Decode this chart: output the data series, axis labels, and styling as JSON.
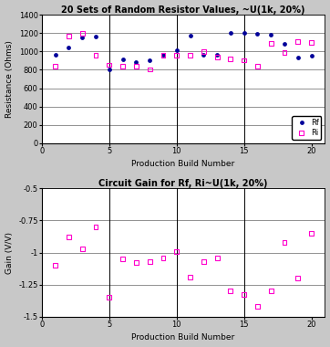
{
  "title1": "20 Sets of Random Resistor Values, ~U(1k, 20%)",
  "title2": "Circuit Gain for Rf, Ri~U(1k, 20%)",
  "xlabel": "Production Build Number",
  "ylabel1": "Resistance (Ohms)",
  "ylabel2": "Gain (V/V)",
  "x": [
    1,
    2,
    3,
    4,
    5,
    6,
    7,
    8,
    9,
    10,
    11,
    12,
    13,
    14,
    15,
    16,
    17,
    18,
    19,
    20
  ],
  "Rf": [
    960,
    1040,
    1155,
    1160,
    805,
    910,
    880,
    900,
    960,
    1015,
    1170,
    960,
    960,
    1200,
    1200,
    1190,
    1185,
    1080,
    930,
    955
  ],
  "Ri": [
    840,
    1170,
    1195,
    960,
    855,
    840,
    840,
    805,
    960,
    960,
    960,
    1000,
    940,
    920,
    905,
    840,
    1090,
    990,
    1110,
    1100
  ],
  "gain": [
    -1.1,
    -0.88,
    -0.97,
    -0.8,
    -1.35,
    -1.05,
    -1.08,
    -1.07,
    -1.04,
    -0.99,
    -1.19,
    -1.07,
    -1.04,
    -1.3,
    -1.33,
    -1.42,
    -1.3,
    -0.92,
    -1.2,
    -0.85
  ],
  "ylim1": [
    0,
    1400
  ],
  "ylim2": [
    -1.5,
    -0.5
  ],
  "yticks1": [
    0,
    200,
    400,
    600,
    800,
    1000,
    1200,
    1400
  ],
  "yticks2": [
    -1.5,
    -1.25,
    -1.0,
    -0.75,
    -0.5
  ],
  "ytick_labels2": [
    "-1.5",
    "-1.25",
    "-1",
    "-0.75",
    "-0.5"
  ],
  "xticks": [
    0,
    5,
    10,
    15,
    20
  ],
  "xlim": [
    0,
    21
  ],
  "color_Rf": "#000099",
  "color_Ri": "#FF00CC",
  "bg_color": "#C8C8C8",
  "plot_bg": "#FFFFFF",
  "grid_color": "#808080",
  "vline_color": "#000000",
  "vlines": [
    5,
    10,
    15
  ]
}
